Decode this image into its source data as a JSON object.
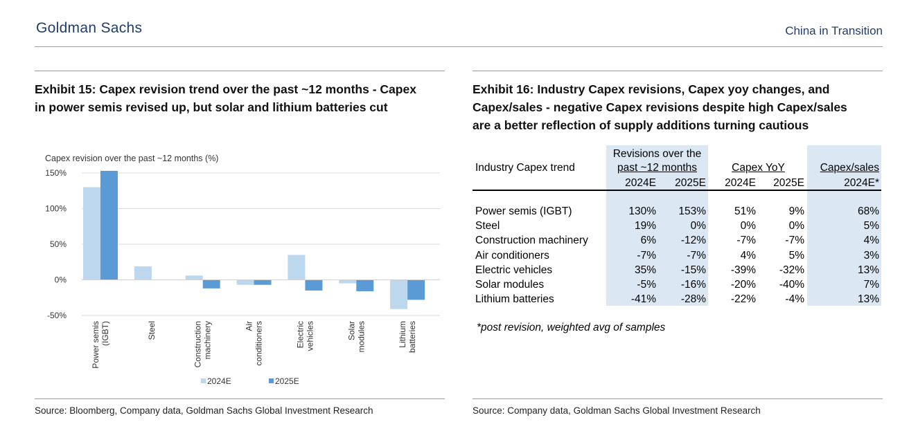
{
  "header": {
    "brand": "Goldman Sachs",
    "series": "China in Transition"
  },
  "exhibit15": {
    "title_line1": "Exhibit 15: Capex revision trend over the past ~12 months  - Capex",
    "title_line2": "in power semis revised up, but solar and lithium batteries cut",
    "source": "Source: Bloomberg, Company data, Goldman Sachs Global Investment Research"
  },
  "exhibit16": {
    "title_line1": "Exhibit 16: Industry Capex revisions, Capex yoy changes, and",
    "title_line2": "Capex/sales - negative Capex revisions despite high Capex/sales",
    "title_line3": "are a better reflection of supply additions turning cautious",
    "source": "Source: Company data, Goldman Sachs Global Investment Research",
    "footnote": "*post revision, weighted avg of samples",
    "table": {
      "row_header": "Industry Capex trend",
      "group_revisions_line1": "Revisions over the",
      "group_revisions_line2": "past ~12 months",
      "group_yoy": "Capex YoY",
      "group_sales": "Capex/sales",
      "sub_2024": "2024E",
      "sub_2025": "2025E",
      "sub_sales": "2024E*",
      "rows": [
        {
          "name": "Power semis (IGBT)",
          "rev24": "130%",
          "rev25": "153%",
          "yoy24": "51%",
          "yoy25": "9%",
          "sales": "68%"
        },
        {
          "name": "Steel",
          "rev24": "19%",
          "rev25": "0%",
          "yoy24": "0%",
          "yoy25": "0%",
          "sales": "5%"
        },
        {
          "name": "Construction machinery",
          "rev24": "6%",
          "rev25": "-12%",
          "yoy24": "-7%",
          "yoy25": "-7%",
          "sales": "4%"
        },
        {
          "name": "Air conditioners",
          "rev24": "-7%",
          "rev25": "-7%",
          "yoy24": "4%",
          "yoy25": "5%",
          "sales": "3%"
        },
        {
          "name": "Electric vehicles",
          "rev24": "35%",
          "rev25": "-15%",
          "yoy24": "-39%",
          "yoy25": "-32%",
          "sales": "13%"
        },
        {
          "name": "Solar modules",
          "rev24": "-5%",
          "rev25": "-16%",
          "yoy24": "-20%",
          "yoy25": "-40%",
          "sales": "7%"
        },
        {
          "name": "Lithium batteries",
          "rev24": "-41%",
          "rev25": "-28%",
          "yoy24": "-22%",
          "yoy25": "-4%",
          "sales": "13%"
        }
      ]
    }
  },
  "chart_data": {
    "type": "bar",
    "title": "Capex revision over the past ~12 months (%)",
    "xlabel": "",
    "ylabel": "Capex revision over the past ~12 months (%)",
    "ylim": [
      -50,
      150
    ],
    "yticks": [
      -50,
      0,
      50,
      100,
      150
    ],
    "ytick_labels": [
      "-50%",
      "0%",
      "50%",
      "100%",
      "150%"
    ],
    "grid": true,
    "legend_position": "bottom",
    "categories": [
      [
        "Power semis",
        "(IGBT)"
      ],
      [
        "Steel"
      ],
      [
        "Construction",
        "machinery"
      ],
      [
        "Air",
        "conditioners"
      ],
      [
        "Electric",
        "vehicles"
      ],
      [
        "Solar",
        "modules"
      ],
      [
        "Lithium",
        "batteries"
      ]
    ],
    "series": [
      {
        "name": "2024E",
        "color": "#bdd7ee",
        "values": [
          130,
          19,
          6,
          -7,
          35,
          -5,
          -41
        ]
      },
      {
        "name": "2025E",
        "color": "#5b9bd5",
        "values": [
          153,
          0,
          -12,
          -7,
          -15,
          -16,
          -28
        ]
      }
    ]
  }
}
